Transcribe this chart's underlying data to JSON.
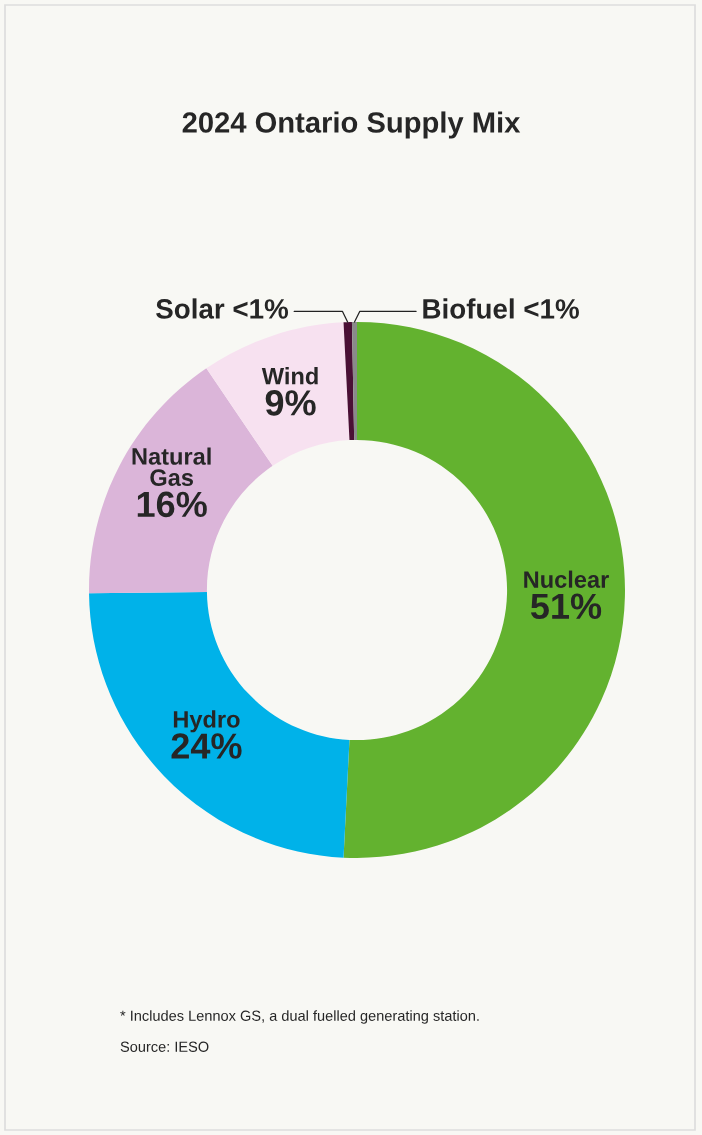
{
  "chart_data": {
    "type": "donut",
    "title": "2024 Ontario Supply Mix",
    "categories": [
      "Nuclear",
      "Hydro",
      "Natural\nGas",
      "Wind",
      "Solar",
      "Biofuel"
    ],
    "values": [
      50.8,
      24,
      15.7,
      8.7,
      0.5,
      0.3
    ],
    "value_labels": [
      "51%",
      "24%",
      "16%",
      "9%",
      "<1%",
      "<1%"
    ],
    "colors": [
      "#63b22f",
      "#00b2e9",
      "#dbb5d9",
      "#f7e1f0",
      "#4a0f35",
      "#8a8a8a"
    ],
    "annotations": [
      "* Includes Lennox GS, a dual fuelled generating station.",
      "Source: IESO"
    ]
  }
}
